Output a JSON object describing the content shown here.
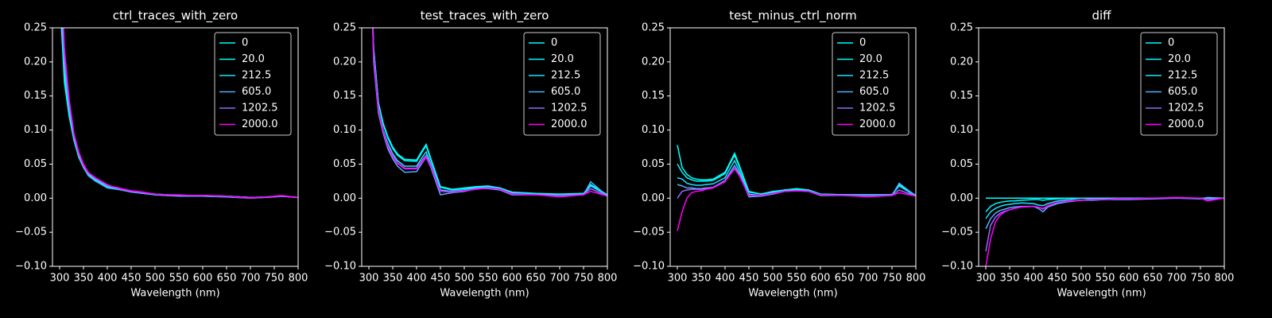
{
  "chart_data": [
    {
      "type": "line",
      "title": "ctrl_traces_with_zero",
      "xlabel": "Wavelength (nm)",
      "xlim": [
        285,
        800
      ],
      "xticks": [
        300,
        350,
        400,
        450,
        500,
        550,
        600,
        650,
        700,
        750,
        800
      ],
      "ylim": [
        -0.1,
        0.25
      ],
      "yticks": [
        {
          "value": -0.1,
          "label": "−0.10"
        },
        {
          "value": -0.05,
          "label": "−0.05"
        },
        {
          "value": 0,
          "label": "0.00"
        },
        0.05,
        {
          "value": 0.1,
          "label": "0.10"
        },
        0.15,
        {
          "value": 0.2,
          "label": "0.20"
        },
        0.25
      ],
      "legend": "upper right",
      "x": [
        300,
        310,
        320,
        330,
        340,
        350,
        360,
        375,
        400,
        410,
        420,
        430,
        450,
        475,
        500,
        525,
        550,
        575,
        600,
        650,
        700,
        750,
        765,
        800
      ],
      "series": [
        {
          "name": "0",
          "color": "#00ffff",
          "values": [
            0.3,
            0.17,
            0.12,
            0.085,
            0.06,
            0.045,
            0.035,
            0.027,
            0.018,
            0.016,
            0.015,
            0.013,
            0.01,
            0.008,
            0.006,
            0.005,
            0.004,
            0.004,
            0.004,
            0.003,
            0.001,
            0.002,
            0.003,
            0.001
          ]
        },
        {
          "name": "20.0",
          "color": "#03fcff",
          "values": [
            0.32,
            0.18,
            0.125,
            0.087,
            0.062,
            0.046,
            0.036,
            0.028,
            0.018,
            0.016,
            0.015,
            0.013,
            0.01,
            0.008,
            0.006,
            0.005,
            0.004,
            0.004,
            0.004,
            0.003,
            0.001,
            0.002,
            0.003,
            0.001
          ]
        },
        {
          "name": "212.5",
          "color": "#1be4ff",
          "values": [
            0.34,
            0.19,
            0.13,
            0.088,
            0.062,
            0.045,
            0.034,
            0.026,
            0.016,
            0.015,
            0.014,
            0.012,
            0.009,
            0.007,
            0.005,
            0.004,
            0.004,
            0.003,
            0.003,
            0.002,
            0.0,
            0.002,
            0.003,
            0.001
          ]
        },
        {
          "name": "605.0",
          "color": "#4db2ff",
          "values": [
            0.36,
            0.2,
            0.135,
            0.09,
            0.063,
            0.045,
            0.033,
            0.025,
            0.015,
            0.014,
            0.013,
            0.012,
            0.009,
            0.007,
            0.005,
            0.004,
            0.003,
            0.003,
            0.003,
            0.002,
            0.0,
            0.002,
            0.003,
            0.001
          ]
        },
        {
          "name": "1202.5",
          "color": "#9966ff",
          "values": [
            0.38,
            0.21,
            0.14,
            0.093,
            0.066,
            0.048,
            0.037,
            0.029,
            0.019,
            0.017,
            0.015,
            0.013,
            0.01,
            0.008,
            0.006,
            0.005,
            0.004,
            0.004,
            0.004,
            0.003,
            0.001,
            0.002,
            0.003,
            0.001
          ]
        },
        {
          "name": "2000.0",
          "color": "#ff00ff",
          "values": [
            0.4,
            0.22,
            0.145,
            0.095,
            0.068,
            0.05,
            0.038,
            0.03,
            0.02,
            0.017,
            0.016,
            0.014,
            0.011,
            0.009,
            0.006,
            0.005,
            0.005,
            0.004,
            0.004,
            0.003,
            0.0,
            0.003,
            0.004,
            0.001
          ]
        }
      ]
    },
    {
      "type": "line",
      "title": "test_traces_with_zero",
      "xlabel": "Wavelength (nm)",
      "xlim": [
        285,
        800
      ],
      "xticks": [
        300,
        350,
        400,
        450,
        500,
        550,
        600,
        650,
        700,
        750,
        800
      ],
      "ylim": [
        -0.1,
        0.25
      ],
      "yticks": [
        {
          "value": -0.1,
          "label": "−0.10"
        },
        {
          "value": -0.05,
          "label": "−0.05"
        },
        {
          "value": 0,
          "label": "0.00"
        },
        0.05,
        {
          "value": 0.1,
          "label": "0.10"
        },
        0.15,
        {
          "value": 0.2,
          "label": "0.20"
        },
        0.25
      ],
      "legend": "upper right",
      "x": [
        300,
        310,
        320,
        330,
        340,
        350,
        360,
        375,
        400,
        410,
        420,
        430,
        450,
        475,
        500,
        525,
        550,
        575,
        600,
        650,
        700,
        750,
        765,
        800
      ],
      "series": [
        {
          "name": "0",
          "color": "#00ffff",
          "values": [
            0.45,
            0.22,
            0.14,
            0.11,
            0.09,
            0.075,
            0.065,
            0.057,
            0.056,
            0.068,
            0.079,
            0.058,
            0.017,
            0.013,
            0.015,
            0.017,
            0.018,
            0.015,
            0.009,
            0.007,
            0.006,
            0.007,
            0.02,
            0.005
          ]
        },
        {
          "name": "20.0",
          "color": "#03fcff",
          "values": [
            0.45,
            0.22,
            0.14,
            0.108,
            0.088,
            0.073,
            0.063,
            0.055,
            0.054,
            0.066,
            0.077,
            0.056,
            0.016,
            0.012,
            0.014,
            0.016,
            0.017,
            0.015,
            0.008,
            0.006,
            0.005,
            0.006,
            0.019,
            0.004
          ]
        },
        {
          "name": "212.5",
          "color": "#1be4ff",
          "values": [
            0.45,
            0.21,
            0.13,
            0.1,
            0.08,
            0.065,
            0.055,
            0.047,
            0.047,
            0.058,
            0.068,
            0.05,
            0.012,
            0.01,
            0.012,
            0.015,
            0.016,
            0.014,
            0.007,
            0.006,
            0.005,
            0.006,
            0.018,
            0.004
          ]
        },
        {
          "name": "605.0",
          "color": "#4db2ff",
          "values": [
            0.45,
            0.2,
            0.125,
            0.095,
            0.072,
            0.058,
            0.047,
            0.038,
            0.039,
            0.05,
            0.06,
            0.045,
            0.005,
            0.008,
            0.01,
            0.014,
            0.014,
            0.012,
            0.005,
            0.005,
            0.004,
            0.005,
            0.024,
            0.003
          ]
        },
        {
          "name": "1202.5",
          "color": "#9966ff",
          "values": [
            0.45,
            0.21,
            0.13,
            0.098,
            0.077,
            0.062,
            0.052,
            0.044,
            0.044,
            0.054,
            0.063,
            0.048,
            0.01,
            0.009,
            0.011,
            0.014,
            0.015,
            0.013,
            0.007,
            0.005,
            0.004,
            0.005,
            0.014,
            0.003
          ]
        },
        {
          "name": "2000.0",
          "color": "#ff00ff",
          "values": [
            0.45,
            0.21,
            0.13,
            0.098,
            0.076,
            0.061,
            0.051,
            0.043,
            0.043,
            0.052,
            0.06,
            0.047,
            0.01,
            0.009,
            0.011,
            0.013,
            0.015,
            0.013,
            0.006,
            0.005,
            0.002,
            0.005,
            0.01,
            0.003
          ]
        }
      ]
    },
    {
      "type": "line",
      "title": "test_minus_ctrl_norm",
      "xlabel": "Wavelength (nm)",
      "xlim": [
        285,
        800
      ],
      "xticks": [
        300,
        350,
        400,
        450,
        500,
        550,
        600,
        650,
        700,
        750,
        800
      ],
      "ylim": [
        -0.1,
        0.25
      ],
      "yticks": [
        {
          "value": -0.1,
          "label": "−0.10"
        },
        {
          "value": -0.05,
          "label": "−0.05"
        },
        {
          "value": 0,
          "label": "0.00"
        },
        0.05,
        {
          "value": 0.1,
          "label": "0.10"
        },
        0.15,
        {
          "value": 0.2,
          "label": "0.20"
        },
        0.25
      ],
      "legend": "upper right",
      "x": [
        300,
        310,
        320,
        330,
        340,
        350,
        360,
        375,
        400,
        410,
        420,
        430,
        450,
        475,
        500,
        525,
        550,
        575,
        600,
        650,
        700,
        750,
        765,
        800
      ],
      "series": [
        {
          "name": "0",
          "color": "#00ffff",
          "values": [
            0.078,
            0.045,
            0.035,
            0.03,
            0.028,
            0.027,
            0.027,
            0.028,
            0.038,
            0.052,
            0.066,
            0.048,
            0.01,
            0.006,
            0.01,
            0.012,
            0.014,
            0.012,
            0.006,
            0.005,
            0.005,
            0.005,
            0.02,
            0.004
          ]
        },
        {
          "name": "20.0",
          "color": "#03fcff",
          "values": [
            0.05,
            0.038,
            0.03,
            0.027,
            0.025,
            0.025,
            0.025,
            0.026,
            0.036,
            0.05,
            0.063,
            0.046,
            0.009,
            0.006,
            0.009,
            0.012,
            0.013,
            0.012,
            0.006,
            0.005,
            0.005,
            0.005,
            0.019,
            0.004
          ]
        },
        {
          "name": "212.5",
          "color": "#1be4ff",
          "values": [
            0.03,
            0.028,
            0.022,
            0.02,
            0.019,
            0.019,
            0.02,
            0.021,
            0.03,
            0.043,
            0.055,
            0.04,
            0.006,
            0.004,
            0.008,
            0.011,
            0.012,
            0.011,
            0.005,
            0.005,
            0.004,
            0.005,
            0.018,
            0.003
          ]
        },
        {
          "name": "605.0",
          "color": "#4db2ff",
          "values": [
            0.02,
            0.018,
            0.015,
            0.015,
            0.014,
            0.014,
            0.015,
            0.016,
            0.026,
            0.037,
            0.048,
            0.036,
            0.002,
            0.003,
            0.006,
            0.01,
            0.011,
            0.01,
            0.004,
            0.004,
            0.004,
            0.004,
            0.022,
            0.003
          ]
        },
        {
          "name": "1202.5",
          "color": "#9966ff",
          "values": [
            0.0,
            0.01,
            0.012,
            0.013,
            0.013,
            0.013,
            0.014,
            0.016,
            0.025,
            0.035,
            0.044,
            0.034,
            0.004,
            0.004,
            0.007,
            0.01,
            0.011,
            0.01,
            0.005,
            0.004,
            0.004,
            0.004,
            0.012,
            0.003
          ]
        },
        {
          "name": "2000.0",
          "color": "#ff00ff",
          "values": [
            -0.048,
            -0.02,
            0.0,
            0.008,
            0.01,
            0.011,
            0.013,
            0.015,
            0.024,
            0.034,
            0.043,
            0.033,
            0.004,
            0.004,
            0.007,
            0.01,
            0.011,
            0.01,
            0.005,
            0.004,
            0.002,
            0.004,
            0.008,
            0.003
          ]
        }
      ]
    },
    {
      "type": "line",
      "title": "diff",
      "xlabel": "Wavelength (nm)",
      "xlim": [
        285,
        800
      ],
      "xticks": [
        300,
        350,
        400,
        450,
        500,
        550,
        600,
        650,
        700,
        750,
        800
      ],
      "ylim": [
        -0.1,
        0.25
      ],
      "yticks": [
        {
          "value": -0.1,
          "label": "−0.10"
        },
        {
          "value": -0.05,
          "label": "−0.05"
        },
        {
          "value": 0,
          "label": "0.00"
        },
        0.05,
        {
          "value": 0.1,
          "label": "0.10"
        },
        0.15,
        {
          "value": 0.2,
          "label": "0.20"
        },
        0.25
      ],
      "legend": "upper right",
      "x": [
        300,
        310,
        320,
        330,
        340,
        350,
        360,
        375,
        400,
        410,
        420,
        430,
        450,
        475,
        500,
        525,
        550,
        575,
        600,
        650,
        700,
        750,
        765,
        800
      ],
      "series": [
        {
          "name": "0",
          "color": "#00ffff",
          "values": [
            0,
            0,
            0,
            0,
            0,
            0,
            0,
            0,
            0,
            0,
            0,
            0,
            0,
            0,
            0,
            0,
            0,
            0,
            0,
            0,
            0,
            0,
            0,
            0
          ]
        },
        {
          "name": "20.0",
          "color": "#03fcff",
          "values": [
            -0.02,
            -0.012,
            -0.008,
            -0.006,
            -0.005,
            -0.004,
            -0.004,
            -0.003,
            -0.002,
            -0.002,
            -0.003,
            -0.002,
            -0.001,
            0.0,
            0.0,
            0.0,
            0.0,
            0.0,
            0.0,
            0.0,
            0.0,
            0.0,
            0.0,
            0.0
          ]
        },
        {
          "name": "212.5",
          "color": "#1be4ff",
          "values": [
            -0.03,
            -0.02,
            -0.015,
            -0.012,
            -0.01,
            -0.009,
            -0.008,
            -0.007,
            -0.008,
            -0.01,
            -0.011,
            -0.008,
            -0.004,
            -0.002,
            0.0,
            -0.001,
            -0.001,
            0.0,
            -0.001,
            0.0,
            0.0,
            0.0,
            0.0,
            0.0
          ]
        },
        {
          "name": "605.0",
          "color": "#4db2ff",
          "values": [
            -0.045,
            -0.03,
            -0.022,
            -0.018,
            -0.016,
            -0.014,
            -0.013,
            -0.012,
            -0.012,
            -0.015,
            -0.02,
            -0.013,
            -0.008,
            -0.005,
            -0.003,
            -0.003,
            -0.002,
            -0.002,
            -0.002,
            -0.001,
            0.0,
            -0.001,
            0.001,
            0.0
          ]
        },
        {
          "name": "1202.5",
          "color": "#9966ff",
          "values": [
            -0.078,
            -0.04,
            -0.028,
            -0.022,
            -0.019,
            -0.017,
            -0.015,
            -0.013,
            -0.012,
            -0.013,
            -0.016,
            -0.012,
            -0.006,
            -0.004,
            -0.003,
            -0.002,
            -0.002,
            -0.001,
            -0.001,
            0.0,
            0.0,
            0.0,
            -0.002,
            0.0
          ]
        },
        {
          "name": "2000.0",
          "color": "#ff00ff",
          "values": [
            -0.1,
            -0.06,
            -0.035,
            -0.025,
            -0.02,
            -0.017,
            -0.015,
            -0.013,
            -0.012,
            -0.013,
            -0.015,
            -0.011,
            -0.006,
            -0.004,
            -0.003,
            -0.002,
            -0.002,
            -0.001,
            -0.001,
            0.0,
            0.001,
            0.0,
            -0.004,
            0.0
          ]
        }
      ]
    }
  ]
}
